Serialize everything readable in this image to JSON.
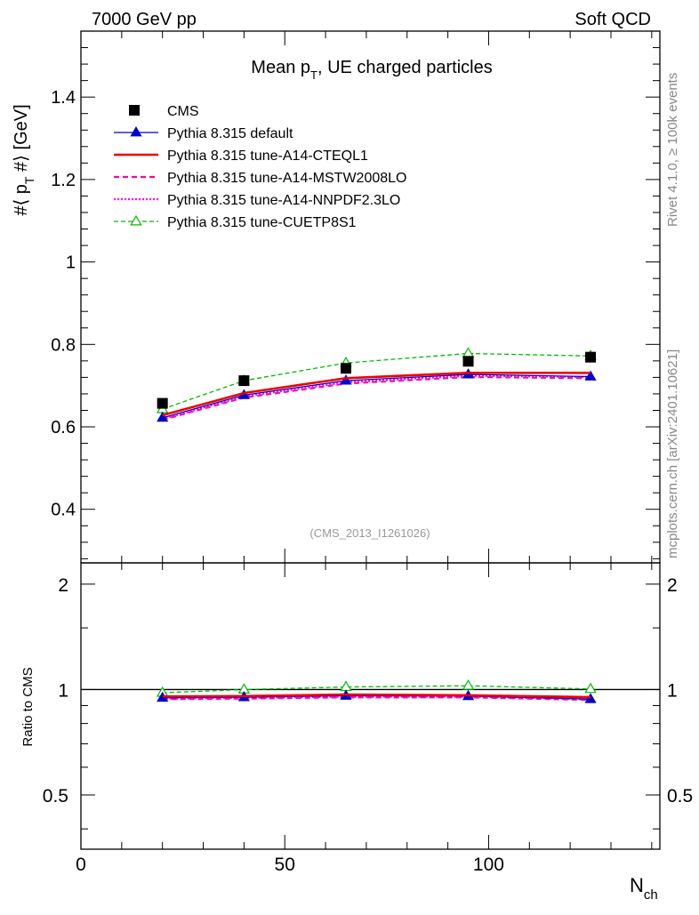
{
  "header": {
    "energy": "7000 GeV pp",
    "process": "Soft QCD"
  },
  "side_labels": {
    "rivet": "Rivet 4.1.0, ≥ 100k events",
    "mcplots": "mcplots.cern.ch [arXiv:2401.10621]"
  },
  "colors": {
    "cms": "#000000",
    "default": "#0000cc",
    "cteql1": "#ee0000",
    "mstw": "#ff00aa",
    "nnpdf": "#ff00ff",
    "cuetp8s1": "#00bb00",
    "frame": "#000000",
    "analysis_label": "#999999"
  },
  "chart_data": [
    {
      "type": "line",
      "panel": "main",
      "title_main": "Mean p",
      "title_sub": "T",
      "title_rest": ", UE charged particles",
      "ylabel": "#⟨ p_T #⟩ [GeV]",
      "ylabel_parts": [
        "#⟨ p",
        "T",
        " #⟩ [GeV]"
      ],
      "xlim": [
        0,
        142
      ],
      "ylim": [
        0.27,
        1.56
      ],
      "yticks": [
        0.4,
        0.6,
        0.8,
        1,
        1.2,
        1.4
      ],
      "ytick_labels": [
        "0.4",
        "0.6",
        "0.8",
        "1",
        "1.2",
        "1.4"
      ],
      "analysis_label": "(CMS_2013_I1261026)",
      "legend_position": "top-left",
      "x": [
        20,
        40,
        65,
        95,
        125
      ],
      "series": [
        {
          "key": "cms",
          "name": "CMS",
          "style": "marker-square",
          "values": [
            0.657,
            0.712,
            0.742,
            0.759,
            0.769
          ]
        },
        {
          "key": "default",
          "name": "Pythia 8.315 default",
          "style": "solid-triangle",
          "values": [
            0.622,
            0.677,
            0.712,
            0.727,
            0.722
          ]
        },
        {
          "key": "cteql1",
          "name": "Pythia 8.315 tune-A14-CTEQL1",
          "style": "solid-thick",
          "values": [
            0.628,
            0.682,
            0.718,
            0.731,
            0.731
          ]
        },
        {
          "key": "mstw",
          "name": "Pythia 8.315 tune-A14-MSTW2008LO",
          "style": "dashed",
          "values": [
            0.617,
            0.671,
            0.705,
            0.721,
            0.718
          ]
        },
        {
          "key": "nnpdf",
          "name": "Pythia 8.315 tune-A14-NNPDF2.3LO",
          "style": "dotted",
          "values": [
            0.619,
            0.674,
            0.708,
            0.724,
            0.721
          ]
        },
        {
          "key": "cuetp8s1",
          "name": "Pythia 8.315 tune-CUETP8S1",
          "style": "dashed-open-triangle",
          "values": [
            0.643,
            0.712,
            0.755,
            0.778,
            0.772
          ]
        }
      ]
    },
    {
      "type": "line",
      "panel": "ratio",
      "ylabel": "Ratio to CMS",
      "xlabel": "N",
      "xlabel_sub": "ch",
      "xlim": [
        0,
        142
      ],
      "ylim": [
        0.35,
        2.3
      ],
      "yticks": [
        0.5,
        1,
        2
      ],
      "ytick_labels": [
        "0.5",
        "1",
        "2"
      ],
      "xticks": [
        0,
        50,
        100
      ],
      "xtick_labels": [
        "0",
        "50",
        "100"
      ],
      "reference": 1,
      "x": [
        20,
        40,
        65,
        95,
        125
      ],
      "series": [
        {
          "key": "default",
          "values": [
            0.947,
            0.951,
            0.96,
            0.958,
            0.939
          ]
        },
        {
          "key": "cteql1",
          "values": [
            0.956,
            0.958,
            0.968,
            0.963,
            0.951
          ]
        },
        {
          "key": "mstw",
          "values": [
            0.939,
            0.942,
            0.95,
            0.95,
            0.934
          ]
        },
        {
          "key": "nnpdf",
          "values": [
            0.942,
            0.947,
            0.954,
            0.954,
            0.938
          ]
        },
        {
          "key": "cuetp8s1",
          "values": [
            0.979,
            1.0,
            1.017,
            1.025,
            1.004
          ]
        }
      ]
    }
  ]
}
